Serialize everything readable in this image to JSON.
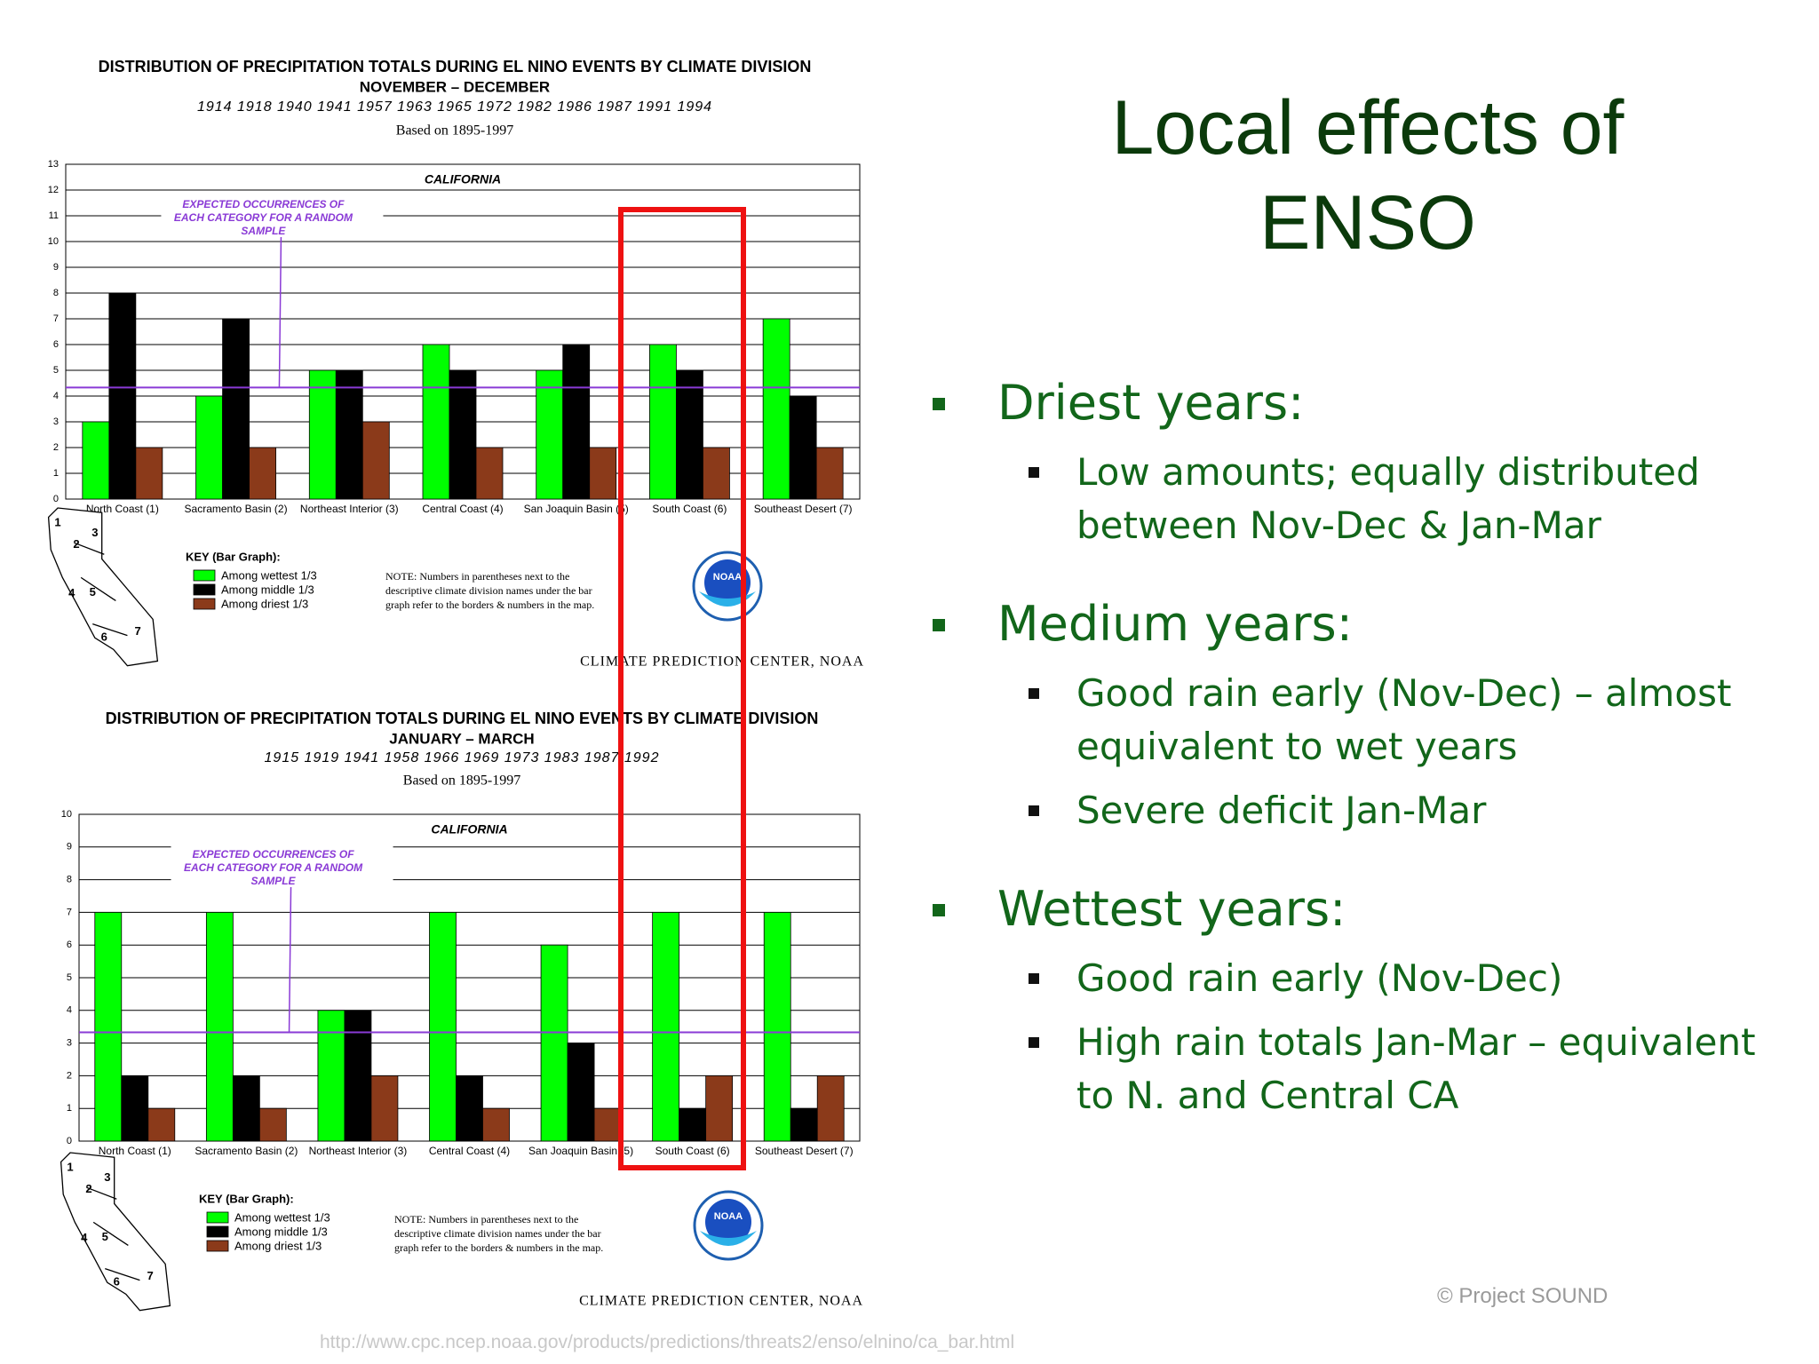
{
  "slide": {
    "title": [
      "Local effects of",
      "ENSO"
    ],
    "bullets": [
      {
        "text": "Driest years:",
        "items": [
          "Low amounts; equally distributed between Nov-Dec & Jan-Mar"
        ]
      },
      {
        "text": "Medium years:",
        "items": [
          "Good rain early (Nov-Dec) – almost equivalent to wet years",
          "Severe deficit Jan-Mar"
        ]
      },
      {
        "text": "Wettest years:",
        "items": [
          "Good rain early (Nov-Dec)",
          "High rain totals Jan-Mar – equivalent to N. and Central CA"
        ]
      }
    ],
    "credit": "© Project  SOUND",
    "url": "http://www.cpc.ncep.noaa.gov/products/predictions/threats2/enso/elnino/ca_bar.html"
  },
  "chart_data": [
    {
      "type": "bar",
      "title": "DISTRIBUTION OF PRECIPITATION TOTALS DURING EL NINO EVENTS BY CLIMATE DIVISION",
      "subtitle": "NOVEMBER – DECEMBER",
      "years": "1914 1918 1940 1941 1957 1963 1965 1972 1982 1986 1987 1991 1994",
      "basis": "Based on 1895-1997",
      "panel_title": "CALIFORNIA",
      "annotation": [
        "EXPECTED OCCURRENCES OF",
        "EACH CATEGORY FOR A RANDOM",
        "SAMPLE"
      ],
      "reference_line": {
        "value": 4.33,
        "color": "#8a3ad6"
      },
      "categories": [
        "North Coast (1)",
        "Sacramento Basin (2)",
        "Northeast Interior (3)",
        "Central Coast (4)",
        "San Joaquin Basin (5)",
        "South Coast (6)",
        "Southeast Desert (7)"
      ],
      "series": [
        {
          "name": "Among wettest 1/3",
          "color": "#00ff00",
          "values": [
            3,
            4,
            5,
            6,
            5,
            6,
            7
          ]
        },
        {
          "name": "Among middle 1/3",
          "color": "#000000",
          "values": [
            8,
            7,
            5,
            5,
            6,
            5,
            4
          ]
        },
        {
          "name": "Among driest 1/3",
          "color": "#8b3a1a",
          "values": [
            2,
            2,
            3,
            2,
            2,
            2,
            2
          ]
        }
      ],
      "ylim": [
        0,
        13
      ],
      "yticks": [
        0,
        1,
        2,
        3,
        4,
        5,
        6,
        7,
        8,
        9,
        10,
        11,
        12,
        13
      ],
      "grid": true,
      "key_title": "KEY (Bar Graph):",
      "note": [
        "NOTE:  Numbers  in  parentheses  next  to  the",
        "descriptive  climate  division  names  under  the  bar",
        "graph  refer  to  the  borders  &  numbers  in  the  map."
      ],
      "source": "CLIMATE PREDICTION CENTER, NOAA",
      "logo": "NOAA",
      "map_labels": [
        "1",
        "2",
        "3",
        "4",
        "5",
        "6",
        "7"
      ]
    },
    {
      "type": "bar",
      "title": "DISTRIBUTION OF PRECIPITATION TOTALS DURING EL NINO EVENTS BY CLIMATE DIVISION",
      "subtitle": "JANUARY – MARCH",
      "years": "1915 1919 1941 1958 1966 1969 1973 1983 1987 1992",
      "basis": "Based on 1895-1997",
      "panel_title": "CALIFORNIA",
      "annotation": [
        "EXPECTED OCCURRENCES OF",
        "EACH CATEGORY FOR A RANDOM",
        "SAMPLE"
      ],
      "reference_line": {
        "value": 3.33,
        "color": "#8a3ad6"
      },
      "categories": [
        "North Coast (1)",
        "Sacramento Basin (2)",
        "Northeast Interior (3)",
        "Central Coast (4)",
        "San Joaquin Basin (5)",
        "South Coast (6)",
        "Southeast Desert (7)"
      ],
      "series": [
        {
          "name": "Among wettest 1/3",
          "color": "#00ff00",
          "values": [
            7,
            7,
            4,
            7,
            6,
            7,
            7
          ]
        },
        {
          "name": "Among middle 1/3",
          "color": "#000000",
          "values": [
            2,
            2,
            4,
            2,
            3,
            1,
            1
          ]
        },
        {
          "name": "Among driest 1/3",
          "color": "#8b3a1a",
          "values": [
            1,
            1,
            2,
            1,
            1,
            2,
            2
          ]
        }
      ],
      "ylim": [
        0,
        10
      ],
      "yticks": [
        0,
        1,
        2,
        3,
        4,
        5,
        6,
        7,
        8,
        9,
        10
      ],
      "grid": true,
      "key_title": "KEY (Bar Graph):",
      "note": [
        "NOTE:  Numbers  in  parentheses  next  to  the",
        "descriptive  climate  division  names  under  the  bar",
        "graph  refer  to  the  borders  &  numbers  in  the  map."
      ],
      "source": "CLIMATE PREDICTION CENTER, NOAA",
      "logo": "NOAA",
      "map_labels": [
        "1",
        "2",
        "3",
        "4",
        "5",
        "6",
        "7"
      ]
    }
  ]
}
